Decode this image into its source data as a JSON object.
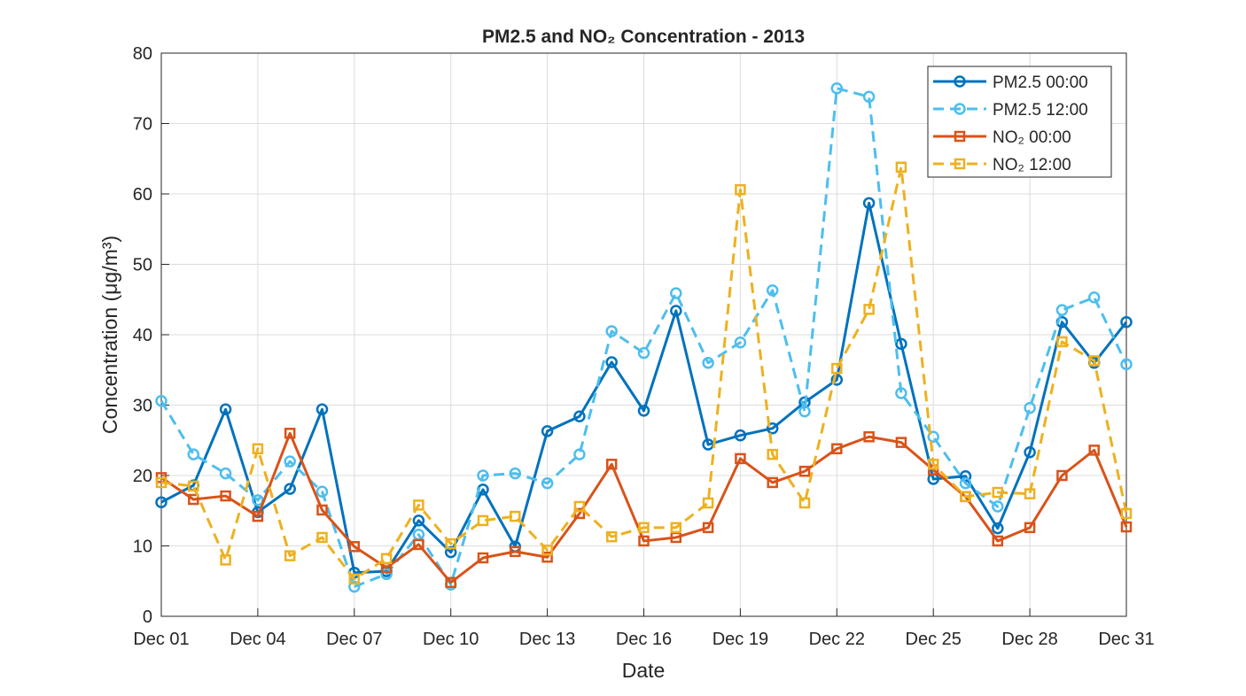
{
  "chart_data": {
    "type": "line",
    "title": "PM2.5 and NO₂ Concentration - 2013",
    "xlabel": "Date",
    "ylabel": "Concentration (μg/m³)",
    "ylim": [
      0,
      80
    ],
    "yticks": [
      0,
      10,
      20,
      30,
      40,
      50,
      60,
      70,
      80
    ],
    "x_day_range": [
      1,
      31
    ],
    "xticks": [
      {
        "day": 1,
        "label": "Dec 01"
      },
      {
        "day": 4,
        "label": "Dec 04"
      },
      {
        "day": 7,
        "label": "Dec 07"
      },
      {
        "day": 10,
        "label": "Dec 10"
      },
      {
        "day": 13,
        "label": "Dec 13"
      },
      {
        "day": 16,
        "label": "Dec 16"
      },
      {
        "day": 19,
        "label": "Dec 19"
      },
      {
        "day": 22,
        "label": "Dec 22"
      },
      {
        "day": 25,
        "label": "Dec 25"
      },
      {
        "day": 28,
        "label": "Dec 28"
      },
      {
        "day": 31,
        "label": "Dec 31"
      }
    ],
    "grid": true,
    "legend_position": "top-right",
    "series": [
      {
        "name": "PM2.5 00:00",
        "color": "#0072BD",
        "dash": false,
        "marker": "circle",
        "values": [
          16.2,
          18.6,
          29.4,
          14.8,
          18.1,
          29.4,
          6.2,
          6.4,
          13.6,
          9.1,
          18.0,
          9.9,
          26.3,
          28.4,
          36.1,
          29.2,
          43.4,
          24.4,
          25.7,
          26.7,
          30.4,
          33.6,
          58.7,
          38.7,
          19.5,
          19.9,
          12.5,
          23.3,
          41.8,
          36.0,
          41.8
        ]
      },
      {
        "name": "PM2.5 12:00",
        "color": "#4DBEEE",
        "dash": true,
        "marker": "circle",
        "values": [
          30.6,
          23.0,
          20.3,
          16.5,
          22.0,
          17.7,
          4.2,
          6.0,
          11.6,
          4.5,
          20.0,
          20.3,
          18.9,
          23.0,
          40.5,
          37.4,
          45.9,
          36.0,
          38.9,
          46.3,
          29.1,
          75.0,
          73.8,
          31.7,
          25.5,
          18.9,
          15.6,
          29.6,
          43.5,
          45.3,
          35.8
        ]
      },
      {
        "name": "NO₂ 00:00",
        "color": "#D95319",
        "dash": false,
        "marker": "square",
        "values": [
          19.7,
          16.6,
          17.1,
          14.2,
          26.0,
          15.1,
          9.9,
          6.9,
          10.2,
          4.8,
          8.3,
          9.2,
          8.4,
          14.6,
          21.6,
          10.7,
          11.2,
          12.6,
          22.4,
          19.0,
          20.6,
          23.8,
          25.5,
          24.7,
          20.8,
          17.0,
          10.7,
          12.6,
          20.0,
          23.6,
          12.7
        ]
      },
      {
        "name": "NO₂ 12:00",
        "color": "#EDB120",
        "dash": true,
        "marker": "square",
        "values": [
          19.0,
          18.5,
          8.0,
          23.8,
          8.6,
          11.2,
          5.3,
          8.2,
          15.8,
          10.3,
          13.6,
          14.2,
          9.4,
          15.6,
          11.3,
          12.6,
          12.6,
          16.1,
          60.6,
          23.0,
          16.1,
          35.2,
          43.6,
          63.8,
          21.6,
          17.0,
          17.6,
          17.4,
          39.0,
          36.3,
          14.6
        ]
      }
    ]
  }
}
